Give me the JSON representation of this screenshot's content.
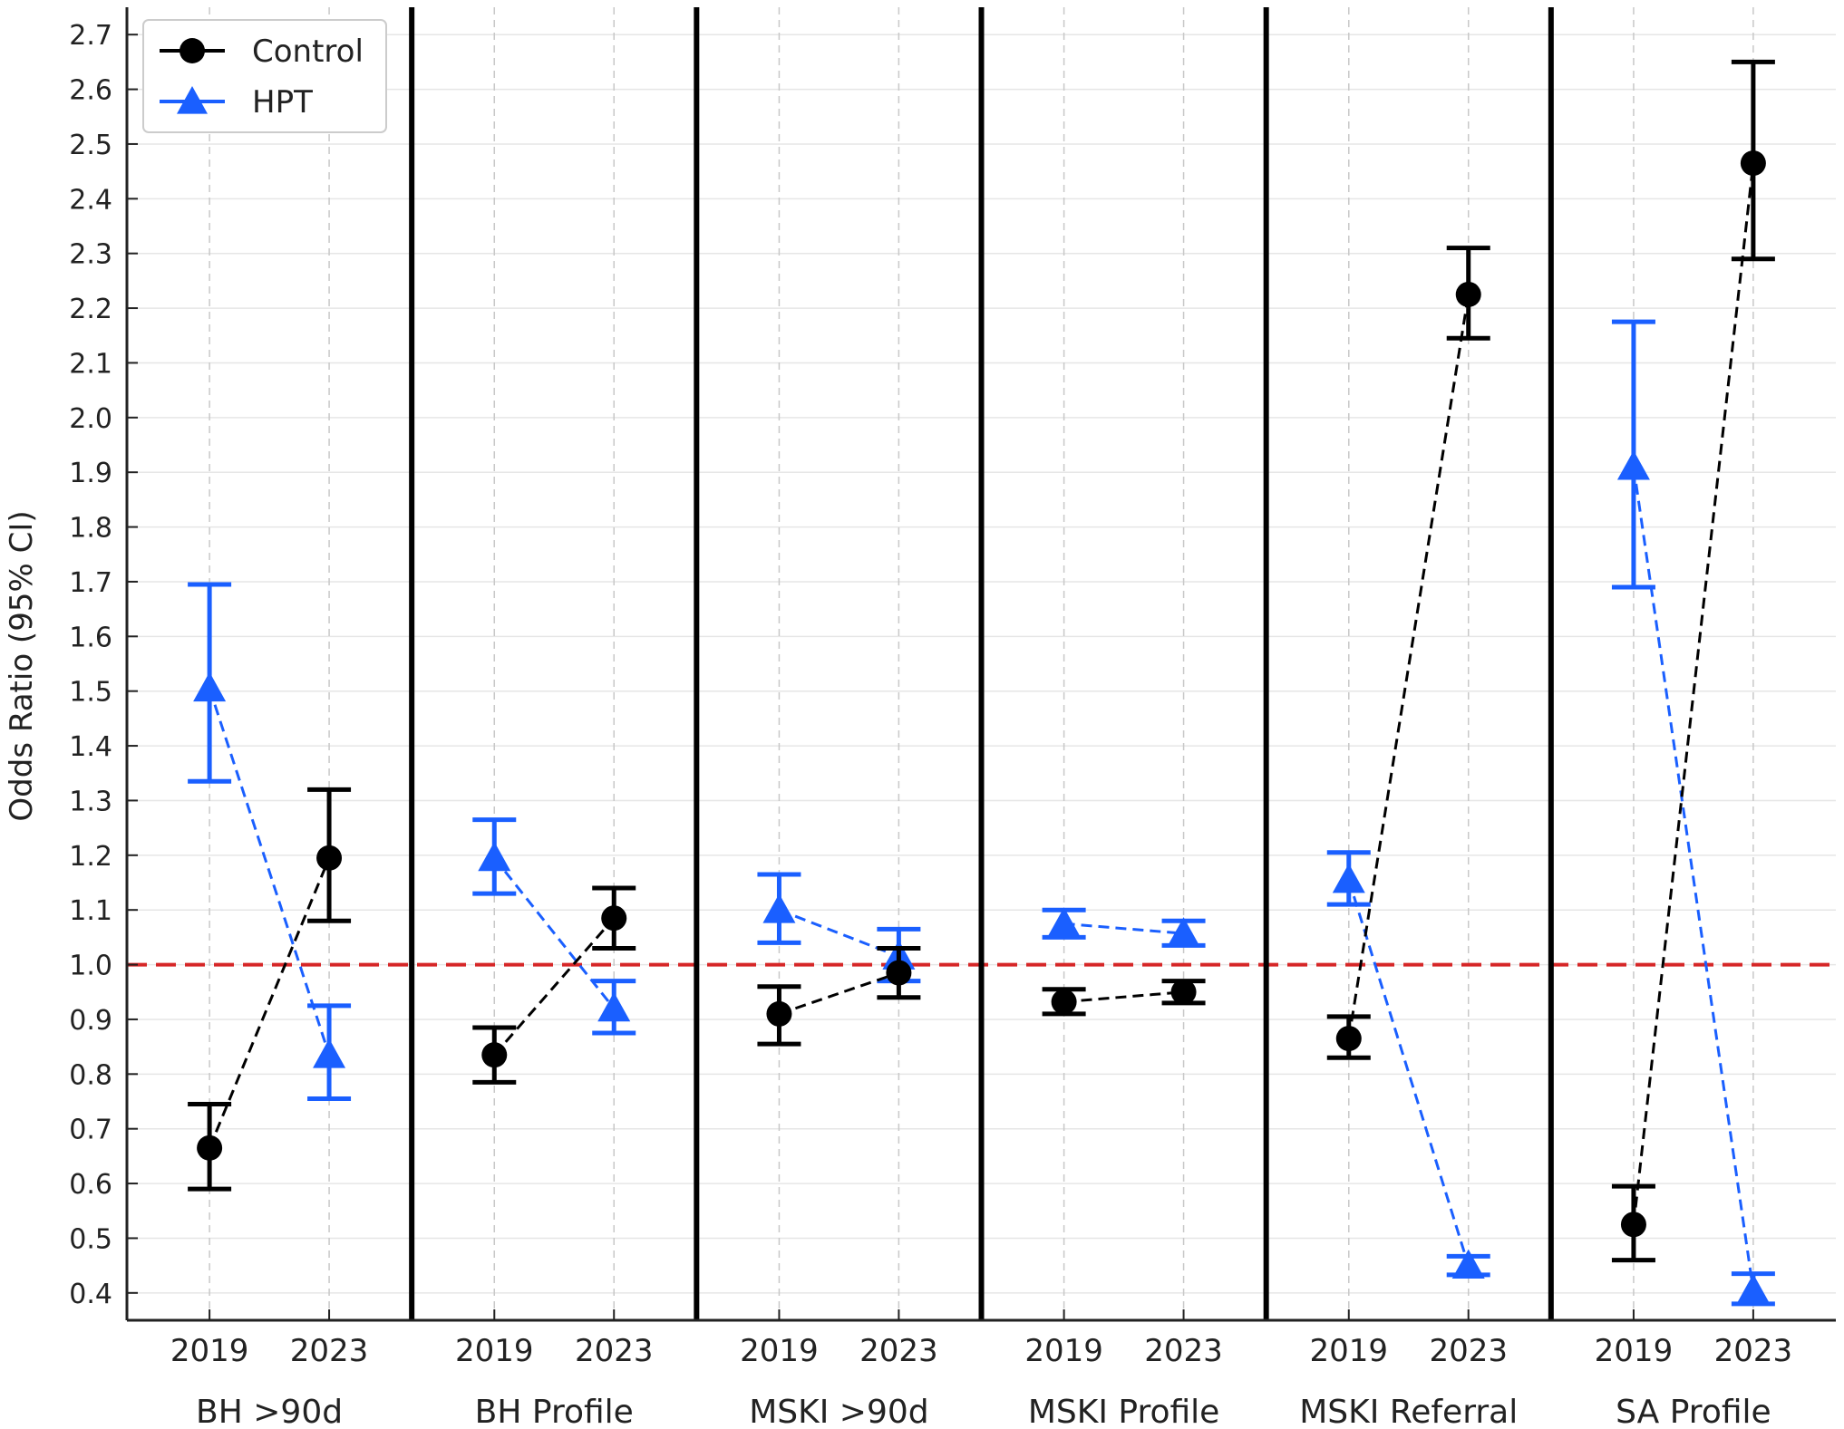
{
  "chart_data": {
    "type": "scatter",
    "ylabel": "Odds Ratio (95% CI)",
    "ylim": [
      0.35,
      2.75
    ],
    "yticks": [
      0.4,
      0.5,
      0.6,
      0.7,
      0.8,
      0.9,
      1.0,
      1.1,
      1.2,
      1.3,
      1.4,
      1.5,
      1.6,
      1.7,
      1.8,
      1.9,
      2.0,
      2.1,
      2.2,
      2.3,
      2.4,
      2.5,
      2.6,
      2.7
    ],
    "reference_line": 1.0,
    "grid": true,
    "legend": "top-left",
    "years": [
      "2019",
      "2023"
    ],
    "groups": [
      {
        "label": "BH >90d",
        "series": [
          {
            "name": "Control",
            "values": [
              0.665,
              1.195
            ],
            "ci_low": [
              0.59,
              1.08
            ],
            "ci_high": [
              0.745,
              1.32
            ]
          },
          {
            "name": "HPT",
            "values": [
              1.505,
              0.835
            ],
            "ci_low": [
              1.335,
              0.755
            ],
            "ci_high": [
              1.695,
              0.925
            ]
          }
        ]
      },
      {
        "label": "BH Profile",
        "series": [
          {
            "name": "Control",
            "values": [
              0.835,
              1.085
            ],
            "ci_low": [
              0.785,
              1.03
            ],
            "ci_high": [
              0.885,
              1.14
            ]
          },
          {
            "name": "HPT",
            "values": [
              1.195,
              0.92
            ],
            "ci_low": [
              1.13,
              0.875
            ],
            "ci_high": [
              1.265,
              0.97
            ]
          }
        ]
      },
      {
        "label": "MSKI >90d",
        "series": [
          {
            "name": "Control",
            "values": [
              0.91,
              0.985
            ],
            "ci_low": [
              0.855,
              0.94
            ],
            "ci_high": [
              0.96,
              1.03
            ]
          },
          {
            "name": "HPT",
            "values": [
              1.1,
              1.015
            ],
            "ci_low": [
              1.04,
              0.97
            ],
            "ci_high": [
              1.165,
              1.065
            ]
          }
        ]
      },
      {
        "label": "MSKI Profile",
        "series": [
          {
            "name": "Control",
            "values": [
              0.932,
              0.95
            ],
            "ci_low": [
              0.91,
              0.93
            ],
            "ci_high": [
              0.955,
              0.97
            ]
          },
          {
            "name": "HPT",
            "values": [
              1.075,
              1.057
            ],
            "ci_low": [
              1.05,
              1.035
            ],
            "ci_high": [
              1.1,
              1.08
            ]
          }
        ]
      },
      {
        "label": "MSKI Referral",
        "series": [
          {
            "name": "Control",
            "values": [
              0.865,
              2.225
            ],
            "ci_low": [
              0.83,
              2.145
            ],
            "ci_high": [
              0.905,
              2.31
            ]
          },
          {
            "name": "HPT",
            "values": [
              1.155,
              0.45
            ],
            "ci_low": [
              1.11,
              0.433
            ],
            "ci_high": [
              1.205,
              0.467
            ]
          }
        ]
      },
      {
        "label": "SA Profile",
        "series": [
          {
            "name": "Control",
            "values": [
              0.525,
              2.465
            ],
            "ci_low": [
              0.46,
              2.29
            ],
            "ci_high": [
              0.595,
              2.65
            ]
          },
          {
            "name": "HPT",
            "values": [
              1.91,
              0.405
            ],
            "ci_low": [
              1.69,
              0.38
            ],
            "ci_high": [
              2.175,
              0.435
            ]
          }
        ]
      }
    ],
    "colors": {
      "Control": "#000000",
      "HPT": "#1a5fff",
      "reference": "#d62728"
    }
  }
}
